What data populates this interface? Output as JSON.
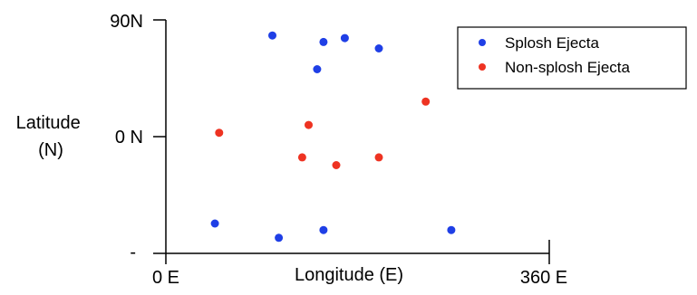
{
  "chart_data": {
    "type": "scatter",
    "title": "",
    "xlabel": "Longitude (E)",
    "ylabel": "Latitude\n(N)",
    "xlim": [
      0,
      360
    ],
    "ylim": [
      -90,
      90
    ],
    "x_ticks": [
      {
        "value": 0,
        "label": "0 E"
      },
      {
        "value": 360,
        "label": "360 E"
      }
    ],
    "y_ticks": [
      {
        "value": 90,
        "label": "90N"
      },
      {
        "value": 0,
        "label": "0 N"
      },
      {
        "value": -90,
        "label": "-"
      }
    ],
    "grid": false,
    "legend_position": "top-right",
    "series": [
      {
        "name": "Splosh Ejecta",
        "color": "#1f3fe6",
        "points": [
          {
            "x": 100,
            "y": 78
          },
          {
            "x": 148,
            "y": 73
          },
          {
            "x": 168,
            "y": 76
          },
          {
            "x": 200,
            "y": 68
          },
          {
            "x": 142,
            "y": 52
          },
          {
            "x": 46,
            "y": -67
          },
          {
            "x": 106,
            "y": -78
          },
          {
            "x": 148,
            "y": -72
          },
          {
            "x": 268,
            "y": -72
          }
        ]
      },
      {
        "name": "Non-splosh Ejecta",
        "color": "#ee3322",
        "points": [
          {
            "x": 244,
            "y": 27
          },
          {
            "x": 134,
            "y": 9
          },
          {
            "x": 50,
            "y": 3
          },
          {
            "x": 128,
            "y": -16
          },
          {
            "x": 160,
            "y": -22
          },
          {
            "x": 200,
            "y": -16
          }
        ]
      }
    ]
  }
}
